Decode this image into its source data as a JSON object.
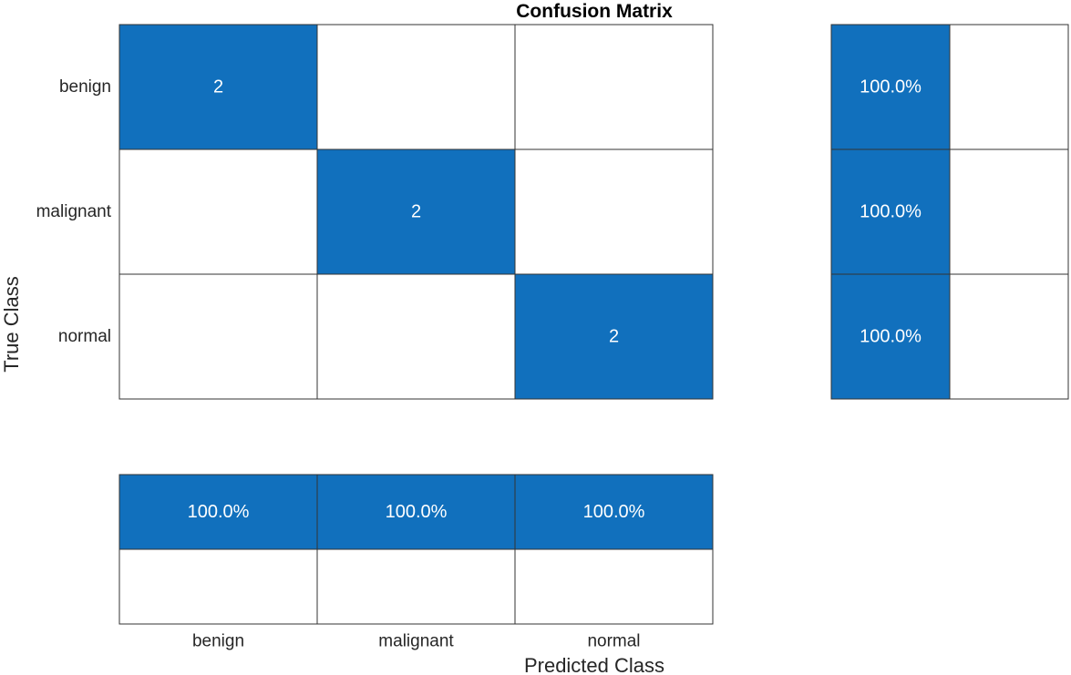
{
  "chart_data": {
    "type": "heatmap",
    "title": "Confusion Matrix",
    "xlabel": "Predicted Class",
    "ylabel": "True Class",
    "row_labels": [
      "benign",
      "malignant",
      "normal"
    ],
    "column_labels": [
      "benign",
      "malignant",
      "normal"
    ],
    "matrix": [
      [
        2,
        null,
        null
      ],
      [
        null,
        2,
        null
      ],
      [
        null,
        null,
        2
      ]
    ],
    "row_summary": {
      "correct": [
        "100.0%",
        "100.0%",
        "100.0%"
      ],
      "incorrect": [
        "",
        "",
        ""
      ]
    },
    "column_summary": {
      "correct": [
        "100.0%",
        "100.0%",
        "100.0%"
      ],
      "incorrect": [
        "",
        "",
        ""
      ]
    },
    "grid": true,
    "colors": {
      "cell_fill": "#1170BD",
      "empty_fill": "#FFFFFF",
      "border": "#333333",
      "cell_text": "#FFFFFF"
    }
  }
}
